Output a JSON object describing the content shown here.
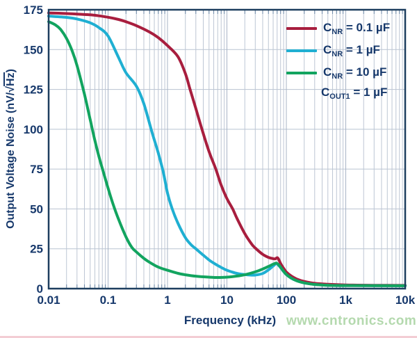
{
  "page": {
    "watermark": "www.cntronics.com"
  },
  "axes": {
    "x_title": "Frequency (kHz)",
    "y_title_prefix": "Output Voltage Noise (nV/",
    "y_title_radical": "√",
    "y_title_radicand": "Hz",
    "y_title_suffix": ")"
  },
  "legend": {
    "items": [
      {
        "sym": "C",
        "sub": "NR",
        "rest": " = 0.1 µF"
      },
      {
        "sym": "C",
        "sub": "NR",
        "rest": " = 1 µF"
      },
      {
        "sym": "C",
        "sub": "NR",
        "rest": " = 10 µF"
      }
    ]
  },
  "annotation": {
    "sym": "C",
    "sub": "OUT1",
    "rest": " = 1 µF"
  },
  "colors": {
    "text_navy": "#16386b",
    "frame": "#1d3e5f",
    "grid_minor": "#bdc6d4",
    "grid_major": "#a7b3c6",
    "grid_horizontal": "#b9c3d1",
    "tick_stub": "#6b87a6",
    "watermark_green": "#b4d9ae",
    "bottom_strip_pink": "#f3cdd4"
  },
  "chart_data": {
    "type": "line",
    "title": "",
    "xlabel": "Frequency (kHz)",
    "ylabel": "Output Voltage Noise (nV/√Hz)",
    "x_scale": "log",
    "xlim": [
      0.01,
      10000
    ],
    "ylim": [
      0,
      175
    ],
    "grid": true,
    "legend_position": "top-right",
    "xticks": [
      {
        "value": 0.01,
        "label": "0.01"
      },
      {
        "value": 0.1,
        "label": "0.1"
      },
      {
        "value": 1,
        "label": "1"
      },
      {
        "value": 10,
        "label": "10"
      },
      {
        "value": 100,
        "label": "100"
      },
      {
        "value": 1000,
        "label": "1k"
      },
      {
        "value": 10000,
        "label": "10k"
      }
    ],
    "yticks": [
      0,
      25,
      50,
      75,
      100,
      125,
      150,
      175
    ],
    "series": [
      {
        "id": "cnr-0p1uf",
        "name": "CNR = 0.1 µF",
        "color": "#a81e3e",
        "points": [
          [
            0.01,
            173
          ],
          [
            0.02,
            172.6
          ],
          [
            0.03,
            172.3
          ],
          [
            0.05,
            171.8
          ],
          [
            0.07,
            171.2
          ],
          [
            0.1,
            170.3
          ],
          [
            0.15,
            168.9
          ],
          [
            0.2,
            167.5
          ],
          [
            0.3,
            165
          ],
          [
            0.5,
            161
          ],
          [
            0.7,
            157.5
          ],
          [
            1,
            152.5
          ],
          [
            1.5,
            145.5
          ],
          [
            2,
            135
          ],
          [
            2.4,
            125
          ],
          [
            3,
            113
          ],
          [
            3.8,
            100
          ],
          [
            5,
            86
          ],
          [
            6.5,
            75
          ],
          [
            8,
            65
          ],
          [
            10,
            56.5
          ],
          [
            12.5,
            50
          ],
          [
            15,
            43.5
          ],
          [
            20,
            34.5
          ],
          [
            26,
            28
          ],
          [
            30,
            25.5
          ],
          [
            40,
            21.5
          ],
          [
            50,
            19.6
          ],
          [
            60,
            18.8
          ],
          [
            65,
            18.7
          ],
          [
            70,
            19.4
          ],
          [
            74,
            18.5
          ],
          [
            80,
            15.8
          ],
          [
            90,
            12.7
          ],
          [
            100,
            10.4
          ],
          [
            120,
            8
          ],
          [
            150,
            6
          ],
          [
            200,
            4.5
          ],
          [
            300,
            3.3
          ],
          [
            500,
            2.7
          ],
          [
            1000,
            2.3
          ],
          [
            3000,
            2.1
          ],
          [
            10000,
            2
          ]
        ]
      },
      {
        "id": "cnr-1uf",
        "name": "CNR = 1 µF",
        "color": "#1fafd2",
        "points": [
          [
            0.01,
            171
          ],
          [
            0.02,
            170.2
          ],
          [
            0.03,
            169.2
          ],
          [
            0.05,
            166.8
          ],
          [
            0.07,
            163.8
          ],
          [
            0.1,
            158.5
          ],
          [
            0.15,
            145
          ],
          [
            0.2,
            135.5
          ],
          [
            0.3,
            127
          ],
          [
            0.4,
            116
          ],
          [
            0.55,
            98
          ],
          [
            0.7,
            85
          ],
          [
            0.85,
            73
          ],
          [
            1,
            60
          ],
          [
            1.2,
            50
          ],
          [
            1.5,
            41
          ],
          [
            2,
            32
          ],
          [
            2.5,
            27.5
          ],
          [
            3,
            25
          ],
          [
            4,
            21
          ],
          [
            5,
            18
          ],
          [
            6,
            16
          ],
          [
            7,
            14.5
          ],
          [
            8,
            13.3
          ],
          [
            10,
            11.5
          ],
          [
            12,
            10.5
          ],
          [
            15,
            9.5
          ],
          [
            20,
            8.8
          ],
          [
            25,
            8.5
          ],
          [
            30,
            8.5
          ],
          [
            40,
            9.5
          ],
          [
            50,
            11.8
          ],
          [
            60,
            14.2
          ],
          [
            68,
            15.7
          ],
          [
            74,
            14.6
          ],
          [
            80,
            13.2
          ],
          [
            90,
            10.7
          ],
          [
            100,
            8.8
          ],
          [
            120,
            6.6
          ],
          [
            150,
            4.9
          ],
          [
            200,
            3.6
          ],
          [
            300,
            2.6
          ],
          [
            500,
            2.1
          ],
          [
            1000,
            1.9
          ],
          [
            10000,
            1.8
          ]
        ]
      },
      {
        "id": "cnr-10uf",
        "name": "CNR = 10 µF",
        "color": "#12a45f",
        "points": [
          [
            0.01,
            167.5
          ],
          [
            0.013,
            165.5
          ],
          [
            0.016,
            162.5
          ],
          [
            0.02,
            157
          ],
          [
            0.025,
            149
          ],
          [
            0.03,
            140
          ],
          [
            0.04,
            122
          ],
          [
            0.05,
            106
          ],
          [
            0.06,
            93
          ],
          [
            0.07,
            83
          ],
          [
            0.085,
            72
          ],
          [
            0.1,
            63
          ],
          [
            0.12,
            53.5
          ],
          [
            0.15,
            43.5
          ],
          [
            0.2,
            32.5
          ],
          [
            0.25,
            26
          ],
          [
            0.3,
            23
          ],
          [
            0.4,
            19
          ],
          [
            0.5,
            16.5
          ],
          [
            0.7,
            13.5
          ],
          [
            1,
            11.5
          ],
          [
            1.5,
            9.6
          ],
          [
            2,
            8.7
          ],
          [
            3,
            7.8
          ],
          [
            5,
            7.2
          ],
          [
            7,
            7
          ],
          [
            10,
            7.2
          ],
          [
            15,
            7.9
          ],
          [
            20,
            8.7
          ],
          [
            30,
            10.5
          ],
          [
            40,
            12.3
          ],
          [
            50,
            13.9
          ],
          [
            60,
            15.3
          ],
          [
            68,
            16
          ],
          [
            74,
            15
          ],
          [
            80,
            13.5
          ],
          [
            90,
            10.9
          ],
          [
            100,
            8.9
          ],
          [
            120,
            6.7
          ],
          [
            150,
            4.9
          ],
          [
            200,
            3.6
          ],
          [
            300,
            2.6
          ],
          [
            500,
            2.1
          ],
          [
            1000,
            1.9
          ],
          [
            10000,
            1.8
          ]
        ]
      }
    ],
    "annotation": "COUT1 = 1 µF"
  }
}
